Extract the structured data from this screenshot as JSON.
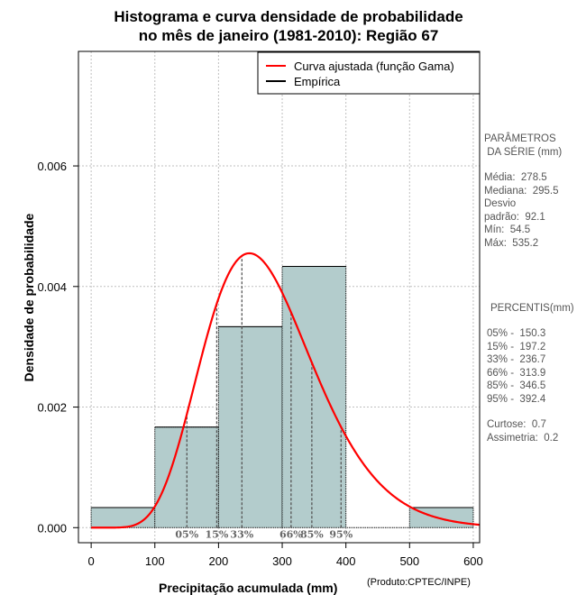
{
  "title": {
    "line1": "Histograma e curva densidade de probabilidade",
    "line2": "no mês de janeiro (1981-2010): Região 67"
  },
  "chart_data": {
    "type": "bar",
    "title": "Histograma e curva densidade de probabilidade no mês de janeiro (1981-2010): Região 67",
    "xlabel": "Precipitação acumulada (mm)",
    "ylabel": "Densidade de probabilidade",
    "xlim": [
      -20,
      610
    ],
    "ylim": [
      -0.00025,
      0.0079
    ],
    "x_ticks": [
      0,
      100,
      200,
      300,
      400,
      500,
      600
    ],
    "y_ticks": [
      0.0,
      0.002,
      0.004,
      0.006
    ],
    "y_tick_labels": [
      "0.000",
      "0.002",
      "0.004",
      "0.006"
    ],
    "grid": true,
    "bins": [
      {
        "start": 0,
        "end": 100,
        "density": 0.000333
      },
      {
        "start": 100,
        "end": 200,
        "density": 0.001667
      },
      {
        "start": 200,
        "end": 300,
        "density": 0.003333
      },
      {
        "start": 300,
        "end": 400,
        "density": 0.004333
      },
      {
        "start": 400,
        "end": 500,
        "density": 0.0
      },
      {
        "start": 500,
        "end": 600,
        "density": 0.000333
      }
    ],
    "fitted_curve": {
      "name": "Curva ajustada (função Gama)",
      "distribution": "gamma",
      "shape": 9.2,
      "scale": 30.3,
      "x_range": [
        0,
        610
      ]
    },
    "percentile_lines": [
      {
        "label": "05%",
        "x": 150.3
      },
      {
        "label": "15%",
        "x": 197.2
      },
      {
        "label": "33%",
        "x": 236.7
      },
      {
        "label": "66%",
        "x": 313.9
      },
      {
        "label": "85%",
        "x": 346.5
      },
      {
        "label": "95%",
        "x": 392.4
      }
    ],
    "legend": {
      "position": "top-right",
      "entries": [
        {
          "label": "Curva ajustada (função Gama)",
          "color": "#ff0000"
        },
        {
          "label": "Empírica",
          "color": "#000000"
        }
      ]
    }
  },
  "parameters": {
    "header": "PARÂMETROS\n DA SÉRIE (mm)",
    "body": "Média:  278.5\nMediana:  295.5\nDesvio\npadrão:  92.1\nMín:  54.5\nMáx:  535.2"
  },
  "percentiles": {
    "header": "PERCENTIS(mm)",
    "body": "05% -  150.3\n15% -  197.2\n33% -  236.7\n66% -  313.9\n85% -  346.5\n95% -  392.4"
  },
  "stats": {
    "body": "Curtose:  0.7\nAssimetria:  0.2"
  },
  "credit": "(Produto:CPTEC/INPE)",
  "colors": {
    "bar_fill": "#b3cccc",
    "curve": "#ff0000",
    "grid": "#bfbfbf",
    "percentile_text": "#666666"
  }
}
